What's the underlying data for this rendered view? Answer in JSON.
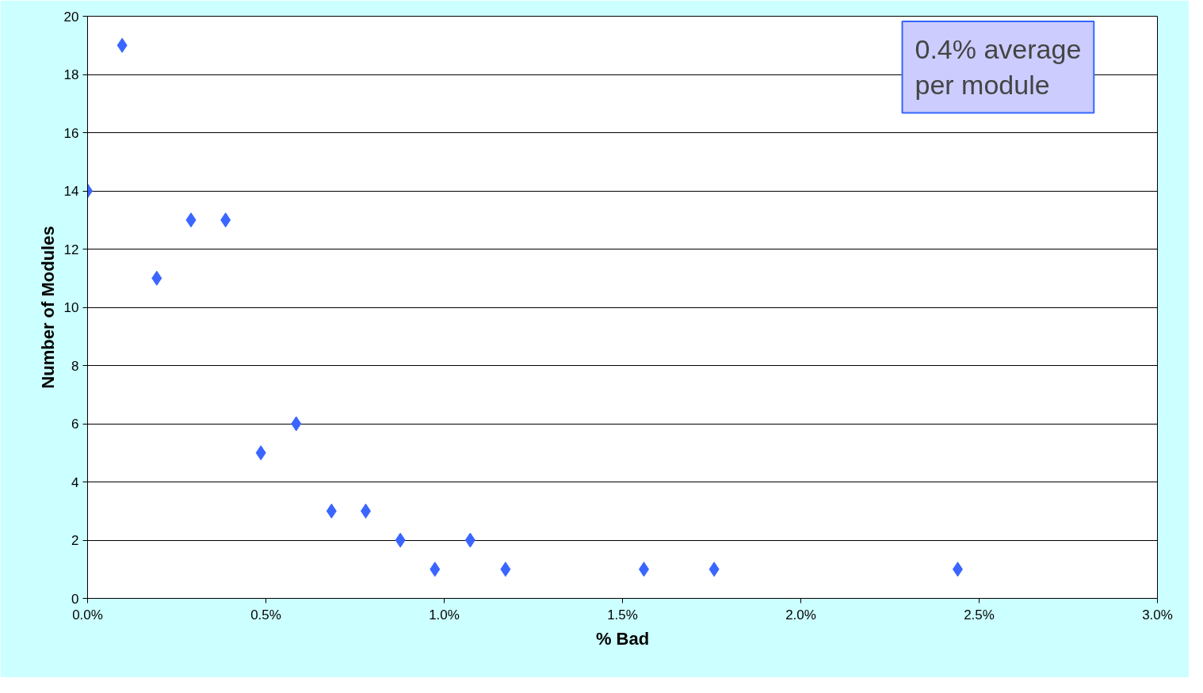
{
  "chart_data": {
    "type": "scatter",
    "xlabel": "% Bad",
    "ylabel": "Number of Modules",
    "x": [
      0.0,
      0.097,
      0.194,
      0.29,
      0.387,
      0.486,
      0.585,
      0.684,
      0.78,
      0.877,
      0.974,
      1.073,
      1.172,
      1.56,
      1.757,
      2.44
    ],
    "series": [
      {
        "color": "#3a66ff",
        "values": [
          14,
          19,
          11,
          13,
          13,
          5,
          6,
          3,
          3,
          2,
          1,
          2,
          1,
          1,
          1,
          1
        ]
      }
    ],
    "xlim": [
      0,
      3
    ],
    "ylim": [
      0,
      20
    ],
    "xticks": [
      {
        "value": 0,
        "label": "0.0%"
      },
      {
        "value": 0.5,
        "label": "0.5%"
      },
      {
        "value": 1,
        "label": "1.0%"
      },
      {
        "value": 1.5,
        "label": "1.5%"
      },
      {
        "value": 2,
        "label": "2.0%"
      },
      {
        "value": 2.5,
        "label": "2.5%"
      },
      {
        "value": 3,
        "label": "3.0%"
      }
    ],
    "yticks": [
      0,
      2,
      4,
      6,
      8,
      10,
      12,
      14,
      16,
      18,
      20
    ],
    "grid": "y",
    "marker": "diamond",
    "annotations": [
      "0.4% average per module"
    ]
  }
}
